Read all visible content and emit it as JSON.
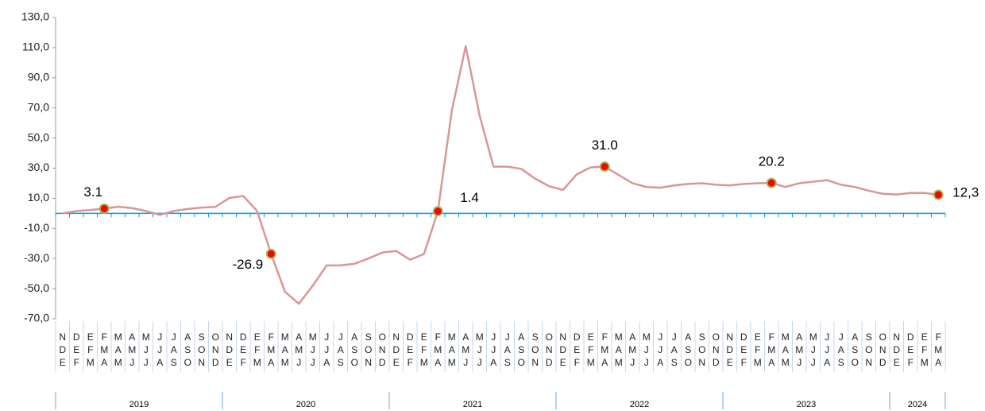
{
  "chart_data": {
    "type": "line",
    "categories": [
      [
        "N",
        "D",
        "E"
      ],
      [
        "D",
        "E",
        "F"
      ],
      [
        "E",
        "F",
        "M"
      ],
      [
        "F",
        "M",
        "A"
      ],
      [
        "M",
        "A",
        "M"
      ],
      [
        "A",
        "M",
        "J"
      ],
      [
        "M",
        "J",
        "J"
      ],
      [
        "J",
        "J",
        "A"
      ],
      [
        "J",
        "A",
        "S"
      ],
      [
        "A",
        "S",
        "O"
      ],
      [
        "S",
        "O",
        "N"
      ],
      [
        "O",
        "N",
        "D"
      ],
      [
        "N",
        "D",
        "E"
      ],
      [
        "D",
        "E",
        "F"
      ],
      [
        "E",
        "F",
        "M"
      ],
      [
        "F",
        "M",
        "A"
      ],
      [
        "M",
        "A",
        "M"
      ],
      [
        "A",
        "M",
        "J"
      ],
      [
        "M",
        "J",
        "J"
      ],
      [
        "J",
        "J",
        "A"
      ],
      [
        "J",
        "A",
        "S"
      ],
      [
        "A",
        "S",
        "O"
      ],
      [
        "S",
        "O",
        "N"
      ],
      [
        "O",
        "N",
        "D"
      ],
      [
        "N",
        "D",
        "E"
      ],
      [
        "D",
        "E",
        "F"
      ],
      [
        "E",
        "F",
        "M"
      ],
      [
        "F",
        "M",
        "A"
      ],
      [
        "M",
        "A",
        "M"
      ],
      [
        "A",
        "M",
        "J"
      ],
      [
        "M",
        "J",
        "J"
      ],
      [
        "J",
        "J",
        "A"
      ],
      [
        "J",
        "A",
        "S"
      ],
      [
        "A",
        "S",
        "O"
      ],
      [
        "S",
        "O",
        "N"
      ],
      [
        "O",
        "N",
        "D"
      ],
      [
        "N",
        "D",
        "E"
      ],
      [
        "D",
        "E",
        "F"
      ],
      [
        "E",
        "F",
        "M"
      ],
      [
        "F",
        "M",
        "A"
      ],
      [
        "M",
        "A",
        "M"
      ],
      [
        "A",
        "M",
        "J"
      ],
      [
        "M",
        "J",
        "J"
      ],
      [
        "J",
        "J",
        "A"
      ],
      [
        "J",
        "A",
        "S"
      ],
      [
        "A",
        "S",
        "O"
      ],
      [
        "S",
        "O",
        "N"
      ],
      [
        "O",
        "N",
        "D"
      ],
      [
        "N",
        "D",
        "E"
      ],
      [
        "D",
        "E",
        "F"
      ],
      [
        "E",
        "F",
        "M"
      ],
      [
        "F",
        "M",
        "A"
      ],
      [
        "M",
        "A",
        "M"
      ],
      [
        "A",
        "M",
        "J"
      ],
      [
        "M",
        "J",
        "J"
      ],
      [
        "J",
        "J",
        "A"
      ],
      [
        "J",
        "A",
        "S"
      ],
      [
        "A",
        "S",
        "O"
      ],
      [
        "S",
        "O",
        "N"
      ],
      [
        "O",
        "N",
        "D"
      ],
      [
        "N",
        "D",
        "E"
      ],
      [
        "D",
        "E",
        "F"
      ],
      [
        "E",
        "F",
        "M"
      ],
      [
        "F",
        "M",
        "A"
      ]
    ],
    "years": [
      "2019",
      "2020",
      "2021",
      "2022",
      "2023",
      "2024"
    ],
    "values": [
      0,
      1.5,
      2.2,
      3.1,
      4.4,
      3.5,
      1.5,
      -1,
      1.5,
      2.9,
      3.8,
      4.3,
      10.2,
      11.5,
      1.5,
      -26.9,
      -52,
      -60,
      -48,
      -34.6,
      -34.5,
      -33.5,
      -30,
      -26,
      -25,
      -30.8,
      -27,
      1.4,
      68,
      111,
      65,
      31,
      31,
      29.5,
      23,
      18,
      15.5,
      26,
      30.5,
      31.0,
      25.5,
      20,
      17.5,
      17,
      18.5,
      19.5,
      20,
      19,
      18.5,
      19.5,
      20,
      20.2,
      17.5,
      20,
      21,
      22,
      19,
      17.5,
      15,
      13,
      12.5,
      13.5,
      13.5,
      12.3
    ],
    "value_labels": [
      null,
      null,
      null,
      "3.1",
      null,
      null,
      null,
      null,
      null,
      null,
      null,
      null,
      null,
      null,
      null,
      "-26.9",
      null,
      null,
      null,
      null,
      null,
      null,
      null,
      null,
      null,
      null,
      null,
      "1.4",
      null,
      null,
      null,
      null,
      null,
      null,
      null,
      null,
      null,
      null,
      null,
      "31.0",
      null,
      null,
      null,
      null,
      null,
      null,
      null,
      null,
      null,
      null,
      null,
      "20.2",
      null,
      null,
      null,
      null,
      null,
      null,
      null,
      null,
      null,
      null,
      null,
      "12,3"
    ],
    "color": "#d99694",
    "marker_color": "#ff0000",
    "zero_line_color": "#00a0e0",
    "ylim": [
      -70,
      130
    ],
    "yticks": [
      {
        "value": -70,
        "label": "-70,0"
      },
      {
        "value": -50,
        "label": "-50,0"
      },
      {
        "value": -30,
        "label": "-30,0"
      },
      {
        "value": -10,
        "label": "-10,0"
      },
      {
        "value": 10,
        "label": "10,0"
      },
      {
        "value": 30,
        "label": "30,0"
      },
      {
        "value": 50,
        "label": "50,0"
      },
      {
        "value": 70,
        "label": "70,0"
      },
      {
        "value": 90,
        "label": "90,0"
      },
      {
        "value": 110,
        "label": "110,0"
      },
      {
        "value": 130,
        "label": "130,0"
      }
    ]
  }
}
